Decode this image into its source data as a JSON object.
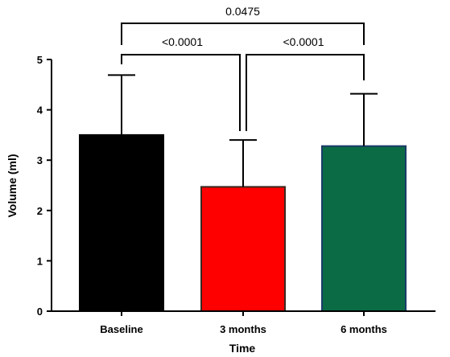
{
  "chart_data": {
    "type": "bar",
    "categories": [
      "Baseline",
      "3 months",
      "6 months"
    ],
    "values": [
      3.5,
      2.47,
      3.28
    ],
    "error_upper": [
      4.69,
      3.4,
      4.32
    ],
    "bar_colors": [
      "#000000",
      "#ff0000",
      "#0b6b45"
    ],
    "bar_edge_colors": [
      "#000000",
      "#3a2a20",
      "#1a3a6a"
    ],
    "title": "",
    "xlabel": "Time",
    "ylabel": "Volume (ml)",
    "ylim": [
      0,
      5
    ],
    "yticks": [
      0,
      1,
      2,
      3,
      4,
      5
    ],
    "grid": false,
    "significance": [
      {
        "from": "Baseline",
        "to": "6 months",
        "label": "0.0475"
      },
      {
        "from": "Baseline",
        "to": "3 months",
        "label": "<0.0001"
      },
      {
        "from": "3 months",
        "to": "6 months",
        "label": "<0.0001"
      }
    ]
  }
}
